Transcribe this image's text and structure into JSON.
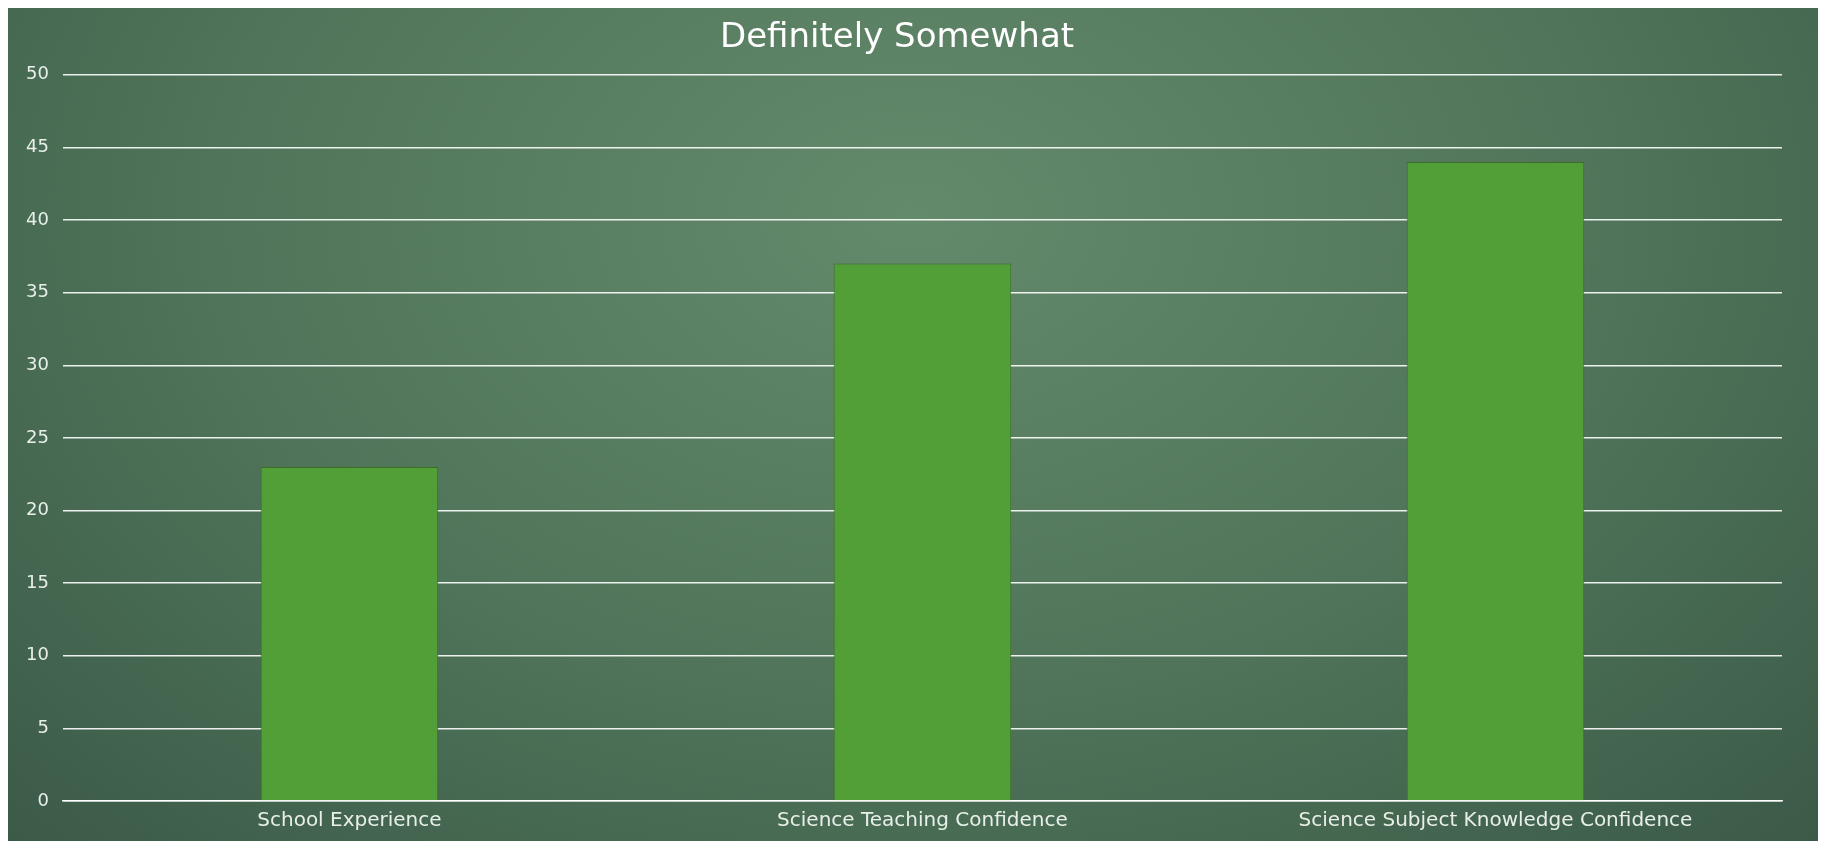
{
  "chart_data": {
    "type": "bar",
    "title": "Definitely Somewhat",
    "categories": [
      "School Experience",
      "Science Teaching Confidence",
      "Science Subject Knowledge Confidence"
    ],
    "values": [
      23,
      37,
      44
    ],
    "color": "#529e37",
    "ylim": [
      0,
      50
    ],
    "yticks": [
      0,
      5,
      10,
      15,
      20,
      25,
      30,
      35,
      40,
      45,
      50
    ],
    "grid": "y"
  }
}
